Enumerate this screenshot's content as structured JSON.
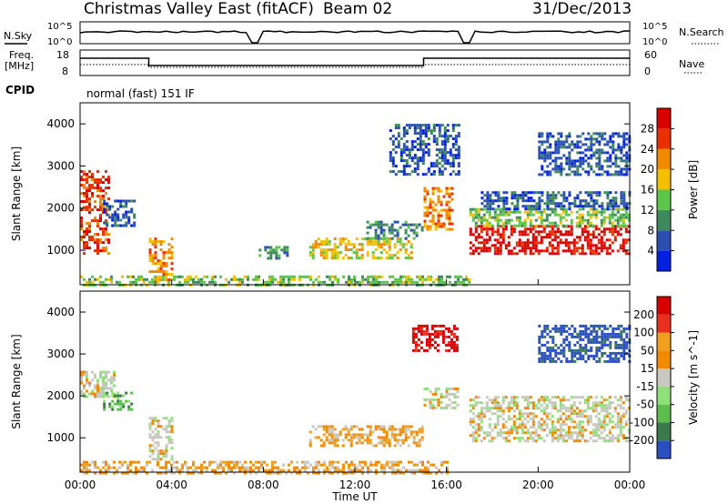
{
  "header": {
    "station": "Christmas Valley East (fitACF)",
    "beam": "Beam 02",
    "date": "31/Dec/2013"
  },
  "params": {
    "nsky_label": "N.Sky",
    "nsky_ticks": [
      "10^5",
      "10^0"
    ],
    "nsearch_label": "N.Search",
    "nsearch_ticks": [
      "10^5",
      "10^0"
    ],
    "freq_label_1": "Freq.",
    "freq_label_2": "[MHz]",
    "freq_ticks": [
      "18",
      "8"
    ],
    "nave_label": "Nave",
    "nave_ticks": [
      "60",
      "0"
    ],
    "cpid_label": "CPID",
    "cpid_value": "normal (fast) 151 IF"
  },
  "chart_data": [
    {
      "type": "heatmap",
      "title": "",
      "ylabel": "Slant Range [km]",
      "xlabel": "Time UT",
      "x_ticks": [
        "00:00",
        "04:00",
        "08:00",
        "12:00",
        "16:00",
        "20:00",
        "00:00"
      ],
      "y_ticks": [
        "1000",
        "2000",
        "3000",
        "4000"
      ],
      "ylim": [
        180,
        4500
      ],
      "xlim_hours": [
        0,
        24
      ],
      "colorbar": {
        "label": "Power [dB]",
        "ticks": [
          "4",
          "8",
          "12",
          "16",
          "20",
          "24",
          "28"
        ],
        "colors": [
          "#0022e0",
          "#2a4fb0",
          "#3f8a5c",
          "#5bc64a",
          "#f3c000",
          "#f08a00",
          "#e83000",
          "#d80000"
        ]
      },
      "regions": [
        {
          "t0": 0.0,
          "t1": 1.3,
          "r0": 900,
          "r1": 2900,
          "level": 6
        },
        {
          "t0": 1.0,
          "t1": 2.4,
          "r0": 1600,
          "r1": 2200,
          "level": 1
        },
        {
          "t0": 3.0,
          "t1": 4.0,
          "r0": 300,
          "r1": 1300,
          "level": 5
        },
        {
          "t0": 7.8,
          "t1": 9.0,
          "r0": 800,
          "r1": 1100,
          "level": 2
        },
        {
          "t0": 10.0,
          "t1": 14.5,
          "r0": 800,
          "r1": 1300,
          "level": 4
        },
        {
          "t0": 12.5,
          "t1": 15.0,
          "r0": 1300,
          "r1": 1700,
          "level": 2
        },
        {
          "t0": 15.0,
          "t1": 16.3,
          "r0": 1500,
          "r1": 2500,
          "level": 5
        },
        {
          "t0": 17.0,
          "t1": 24.0,
          "r0": 900,
          "r1": 1600,
          "level": 7
        },
        {
          "t0": 17.0,
          "t1": 24.0,
          "r0": 1600,
          "r1": 2000,
          "level": 3
        },
        {
          "t0": 17.5,
          "t1": 24.0,
          "r0": 2000,
          "r1": 2400,
          "level": 1
        },
        {
          "t0": 0.0,
          "t1": 17.0,
          "r0": 180,
          "r1": 400,
          "level": 3
        },
        {
          "t0": 13.5,
          "t1": 16.5,
          "r0": 2800,
          "r1": 4000,
          "level": 1
        },
        {
          "t0": 20.0,
          "t1": 24.0,
          "r0": 2800,
          "r1": 3800,
          "level": 1
        }
      ]
    },
    {
      "type": "heatmap",
      "title": "",
      "ylabel": "Slant Range [km]",
      "xlabel": "Time UT",
      "x_ticks": [
        "00:00",
        "04:00",
        "08:00",
        "12:00",
        "16:00",
        "20:00",
        "00:00"
      ],
      "y_ticks": [
        "1000",
        "2000",
        "3000",
        "4000"
      ],
      "ylim": [
        180,
        4500
      ],
      "xlim_hours": [
        0,
        24
      ],
      "colorbar": {
        "label": "Velocity [m s^-1]",
        "ticks": [
          "200",
          "100",
          "50",
          "15",
          "-15",
          "-50",
          "-100",
          "-200"
        ],
        "colors": [
          "#2a4fc0",
          "#3a7a4c",
          "#5bbd4a",
          "#8ee07a",
          "#c8c8c0",
          "#f08a00",
          "#f0a020",
          "#e83020",
          "#d80000"
        ]
      },
      "regions": [
        {
          "t0": 0.0,
          "t1": 1.5,
          "r0": 2000,
          "r1": 2600,
          "level": 4
        },
        {
          "t0": 1.0,
          "t1": 2.2,
          "r0": 1700,
          "r1": 2100,
          "level": 2
        },
        {
          "t0": 3.0,
          "t1": 4.0,
          "r0": 500,
          "r1": 1500,
          "level": 4
        },
        {
          "t0": 0.0,
          "t1": 16.0,
          "r0": 180,
          "r1": 450,
          "level": 5
        },
        {
          "t0": 10.0,
          "t1": 15.0,
          "r0": 800,
          "r1": 1300,
          "level": 5
        },
        {
          "t0": 15.0,
          "t1": 16.5,
          "r0": 1700,
          "r1": 2200,
          "level": 4
        },
        {
          "t0": 17.0,
          "t1": 24.0,
          "r0": 900,
          "r1": 2000,
          "level": 4
        },
        {
          "t0": 14.5,
          "t1": 16.5,
          "r0": 3100,
          "r1": 3700,
          "level": 8
        },
        {
          "t0": 20.0,
          "t1": 24.0,
          "r0": 2800,
          "r1": 3700,
          "level": 0
        }
      ]
    }
  ]
}
